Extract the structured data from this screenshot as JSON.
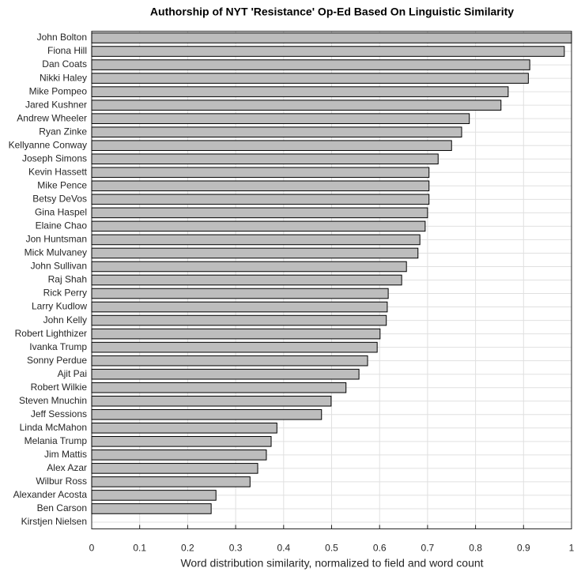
{
  "chart_data": {
    "type": "barh",
    "title": "Authorship of NYT 'Resistance' Op-Ed Based On Linguistic Similarity",
    "x_label": "Word distribution similarity, normalized to field and word count",
    "categories": [
      "John Bolton",
      "Fiona Hill",
      "Dan Coats",
      "Nikki Haley",
      "Mike Pompeo",
      "Jared Kushner",
      "Andrew Wheeler",
      "Ryan Zinke",
      "Kellyanne Conway",
      "Joseph Simons",
      "Kevin Hassett",
      "Mike Pence",
      "Betsy DeVos",
      "Gina Haspel",
      "Elaine Chao",
      "Jon Huntsman",
      "Mick Mulvaney",
      "John Sullivan",
      "Raj Shah",
      "Rick Perry",
      "Larry Kudlow",
      "John Kelly",
      "Robert Lighthizer",
      "Ivanka Trump",
      "Sonny Perdue",
      "Ajit Pai",
      "Robert Wilkie",
      "Steven Mnuchin",
      "Jeff Sessions",
      "Linda McMahon",
      "Melania Trump",
      "Jim Mattis",
      "Alex Azar",
      "Wilbur Ross",
      "Alexander Acosta",
      "Ben Carson",
      "Kirstjen Nielsen"
    ],
    "values": [
      1.0,
      0.985,
      0.913,
      0.91,
      0.868,
      0.853,
      0.787,
      0.771,
      0.75,
      0.722,
      0.703,
      0.703,
      0.703,
      0.7,
      0.695,
      0.684,
      0.68,
      0.656,
      0.646,
      0.618,
      0.616,
      0.614,
      0.601,
      0.595,
      0.575,
      0.557,
      0.53,
      0.499,
      0.479,
      0.386,
      0.374,
      0.364,
      0.346,
      0.33,
      0.259,
      0.249,
      0
    ],
    "color": "#bdbdbd",
    "xlim": [
      0,
      1
    ],
    "xticks": [
      0,
      0.1,
      0.2,
      0.3,
      0.4,
      0.5,
      0.6,
      0.7,
      0.8,
      0.9,
      1
    ],
    "grid": true
  }
}
